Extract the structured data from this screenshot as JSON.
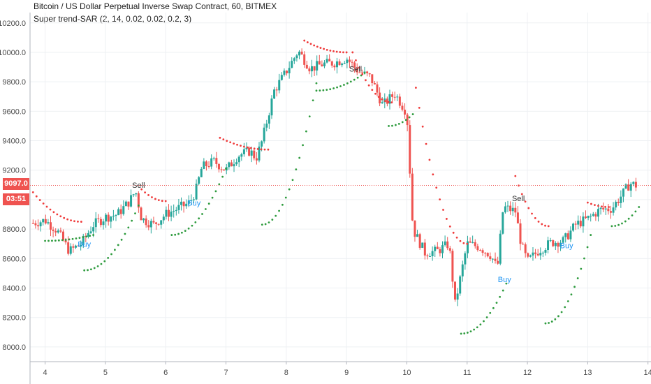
{
  "header": {
    "title": "Bitcoin / US Dollar Perpetual Inverse Swap Contract, 60, BITMEX",
    "indicator": "Super trend-SAR (2, 14, 0.02, 0.02, 0.2, 3)"
  },
  "price_tag": {
    "price": "9097.0",
    "countdown": "03:51"
  },
  "colors": {
    "up": "#26a69a",
    "down": "#ef5350",
    "sar_up": "#2e9b3e",
    "sar_down": "#ef3b3b",
    "buy": "#2196f3",
    "sell": "#333333",
    "grid": "#eef0f3",
    "axis_text": "#4a4a4a"
  },
  "chart_data": {
    "type": "candlestick",
    "y_axis_ticks": [
      "10200.0",
      "10000.0",
      "9800.0",
      "9600.0",
      "9400.0",
      "9200.0",
      "9000.0",
      "8800.0",
      "8600.0",
      "8400.0",
      "8200.0",
      "8000.0"
    ],
    "x_axis_ticks": [
      "4",
      "5",
      "6",
      "7",
      "8",
      "9",
      "10",
      "11",
      "12",
      "13",
      "14"
    ],
    "ylim": [
      7900,
      10270
    ],
    "xlim": [
      3.75,
      14.05
    ],
    "current_price": 9097.0,
    "series": [
      {
        "name": "BTC price",
        "points": [
          [
            3.8,
            8840
          ],
          [
            4.0,
            8860
          ],
          [
            4.2,
            8790
          ],
          [
            4.4,
            8650
          ],
          [
            4.6,
            8700
          ],
          [
            4.8,
            8830
          ],
          [
            5.0,
            8880
          ],
          [
            5.2,
            8900
          ],
          [
            5.4,
            8990
          ],
          [
            5.5,
            9060
          ],
          [
            5.6,
            8870
          ],
          [
            5.8,
            8830
          ],
          [
            6.0,
            8900
          ],
          [
            6.2,
            8940
          ],
          [
            6.4,
            8980
          ],
          [
            6.5,
            9060
          ],
          [
            6.6,
            9220
          ],
          [
            6.8,
            9260
          ],
          [
            7.0,
            9200
          ],
          [
            7.2,
            9300
          ],
          [
            7.4,
            9330
          ],
          [
            7.5,
            9280
          ],
          [
            7.6,
            9400
          ],
          [
            7.8,
            9740
          ],
          [
            8.0,
            9870
          ],
          [
            8.1,
            9940
          ],
          [
            8.2,
            10010
          ],
          [
            8.4,
            9890
          ],
          [
            8.6,
            9920
          ],
          [
            8.8,
            9930
          ],
          [
            9.0,
            9960
          ],
          [
            9.2,
            9870
          ],
          [
            9.4,
            9830
          ],
          [
            9.6,
            9640
          ],
          [
            9.8,
            9720
          ],
          [
            10.0,
            9590
          ],
          [
            10.1,
            8800
          ],
          [
            10.3,
            8640
          ],
          [
            10.5,
            8650
          ],
          [
            10.7,
            8700
          ],
          [
            10.8,
            8290
          ],
          [
            11.0,
            8700
          ],
          [
            11.2,
            8680
          ],
          [
            11.4,
            8620
          ],
          [
            11.5,
            8530
          ],
          [
            11.6,
            8950
          ],
          [
            11.8,
            8920
          ],
          [
            11.9,
            8690
          ],
          [
            12.0,
            8580
          ],
          [
            12.2,
            8660
          ],
          [
            12.4,
            8710
          ],
          [
            12.6,
            8720
          ],
          [
            12.8,
            8830
          ],
          [
            13.0,
            8870
          ],
          [
            13.2,
            8930
          ],
          [
            13.4,
            8940
          ],
          [
            13.6,
            9050
          ],
          [
            13.7,
            9110
          ],
          [
            13.8,
            9097
          ]
        ]
      }
    ],
    "annotations": [
      {
        "text": "Sell",
        "x": 5.55,
        "y": 9080
      },
      {
        "text": "Buy",
        "x": 4.65,
        "y": 8680
      },
      {
        "text": "Buy",
        "x": 6.47,
        "y": 8960
      },
      {
        "text": "Sell",
        "x": 9.15,
        "y": 9870
      },
      {
        "text": "Sell",
        "x": 11.85,
        "y": 8990
      },
      {
        "text": "Buy",
        "x": 11.62,
        "y": 8440
      },
      {
        "text": "Buy",
        "x": 12.65,
        "y": 8670
      }
    ],
    "sar_segments": [
      {
        "dir": "down",
        "x": [
          3.8,
          4.6
        ],
        "y": [
          9050,
          8850
        ]
      },
      {
        "dir": "up",
        "x": [
          4.0,
          4.8
        ],
        "y": [
          8720,
          8760
        ]
      },
      {
        "dir": "up",
        "x": [
          4.65,
          5.55
        ],
        "y": [
          8520,
          8960
        ]
      },
      {
        "dir": "down",
        "x": [
          5.6,
          6.0
        ],
        "y": [
          9070,
          8990
        ]
      },
      {
        "dir": "up",
        "x": [
          6.1,
          7.0
        ],
        "y": [
          8760,
          9210
        ]
      },
      {
        "dir": "down",
        "x": [
          6.9,
          7.7
        ],
        "y": [
          9420,
          9340
        ]
      },
      {
        "dir": "up",
        "x": [
          7.6,
          8.5
        ],
        "y": [
          8830,
          9790
        ]
      },
      {
        "dir": "down",
        "x": [
          8.3,
          9.0
        ],
        "y": [
          10080,
          10000
        ]
      },
      {
        "dir": "up",
        "x": [
          8.5,
          9.3
        ],
        "y": [
          9740,
          9860
        ]
      },
      {
        "dir": "down",
        "x": [
          9.1,
          9.75
        ],
        "y": [
          10000,
          9660
        ]
      },
      {
        "dir": "up",
        "x": [
          9.7,
          10.1
        ],
        "y": [
          9500,
          9580
        ]
      },
      {
        "dir": "down",
        "x": [
          10.15,
          11.0
        ],
        "y": [
          9760,
          8700
        ]
      },
      {
        "dir": "up",
        "x": [
          10.9,
          11.65
        ],
        "y": [
          8090,
          8430
        ]
      },
      {
        "dir": "down",
        "x": [
          11.8,
          12.35
        ],
        "y": [
          9160,
          8820
        ]
      },
      {
        "dir": "up",
        "x": [
          12.3,
          13.05
        ],
        "y": [
          8160,
          8760
        ]
      },
      {
        "dir": "down",
        "x": [
          13.0,
          13.35
        ],
        "y": [
          8980,
          8950
        ]
      },
      {
        "dir": "up",
        "x": [
          13.4,
          13.85
        ],
        "y": [
          8820,
          8950
        ]
      }
    ]
  }
}
